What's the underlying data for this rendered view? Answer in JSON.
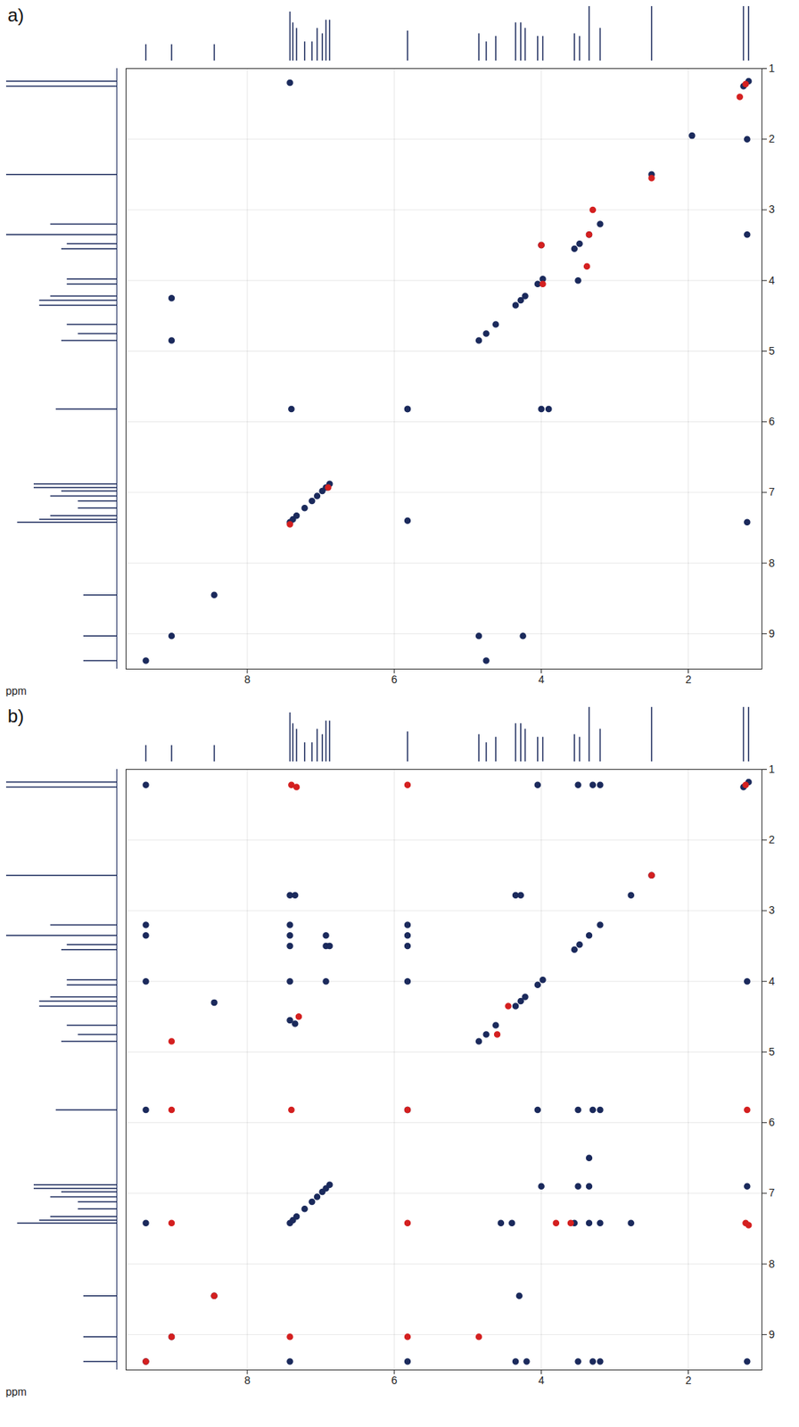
{
  "chart_data": [
    {
      "type": "scatter",
      "panel": "a)",
      "xlabel": "ppm",
      "xlim": [
        9.65,
        1.0
      ],
      "xticks": [
        8,
        6,
        4,
        2
      ],
      "ylim": [
        9.5,
        1.0
      ],
      "yticks": [
        1,
        2,
        3,
        4,
        5,
        6,
        7,
        8,
        9
      ],
      "grid": true,
      "marker": "circle",
      "projection": {
        "lim": [
          0,
          1
        ],
        "ppm": [
          9.38,
          9.03,
          8.45,
          7.42,
          7.38,
          7.33,
          7.22,
          7.12,
          7.05,
          6.98,
          6.93,
          6.88,
          5.82,
          4.85,
          4.75,
          4.62,
          4.35,
          4.28,
          4.22,
          4.05,
          3.98,
          3.55,
          3.48,
          3.35,
          3.2,
          2.5,
          1.25,
          1.18
        ],
        "intensity": [
          0.3,
          0.3,
          0.3,
          0.9,
          0.7,
          0.6,
          0.35,
          0.35,
          0.6,
          0.5,
          0.75,
          0.75,
          0.55,
          0.5,
          0.35,
          0.45,
          0.7,
          0.7,
          0.6,
          0.45,
          0.45,
          0.5,
          0.45,
          1.0,
          0.6,
          1.0,
          1.0,
          1.0
        ]
      },
      "series": [
        {
          "color": "#1b2a5c",
          "x": [
            9.38,
            9.03,
            8.45,
            7.42,
            7.38,
            7.33,
            7.22,
            7.12,
            7.05,
            6.98,
            6.93,
            6.88,
            5.82,
            4.85,
            4.75,
            4.62,
            4.35,
            4.28,
            4.22,
            4.05,
            3.98,
            3.55,
            3.48,
            3.35,
            3.2,
            2.5,
            1.95,
            1.25,
            1.18,
            1.2,
            4.0,
            3.5,
            5.82,
            7.4,
            5.82,
            4.0,
            3.9,
            9.03,
            4.85,
            4.75,
            9.03,
            4.25,
            1.2,
            1.2,
            7.42
          ],
          "y": [
            9.38,
            9.03,
            8.45,
            7.42,
            7.38,
            7.33,
            7.22,
            7.12,
            7.05,
            6.98,
            6.93,
            6.88,
            5.82,
            4.85,
            4.75,
            4.62,
            4.35,
            4.28,
            4.22,
            4.05,
            3.98,
            3.55,
            3.48,
            3.35,
            3.2,
            2.5,
            1.95,
            1.25,
            1.18,
            2.0,
            3.5,
            4.0,
            7.4,
            5.82,
            5.82,
            5.82,
            5.82,
            4.85,
            9.03,
            9.38,
            4.25,
            9.03,
            7.42,
            3.35,
            1.2
          ]
        },
        {
          "color": "#d42020",
          "x": [
            3.35,
            3.3,
            3.38,
            1.22,
            1.3,
            2.5,
            7.42,
            6.9,
            3.98,
            4.0
          ],
          "y": [
            3.35,
            3.0,
            3.8,
            1.22,
            1.4,
            2.55,
            7.45,
            6.93,
            4.05,
            3.5
          ]
        }
      ]
    },
    {
      "type": "scatter",
      "panel": "b)",
      "xlabel": "ppm",
      "xlim": [
        9.65,
        1.0
      ],
      "xticks": [
        8,
        6,
        4,
        2
      ],
      "ylim": [
        9.5,
        1.0
      ],
      "yticks": [
        1,
        2,
        3,
        4,
        5,
        6,
        7,
        8,
        9
      ],
      "grid": true,
      "marker": "circle",
      "projection": {
        "lim": [
          0,
          1
        ],
        "ppm": [
          9.38,
          9.03,
          8.45,
          7.42,
          7.38,
          7.33,
          7.22,
          7.12,
          7.05,
          6.98,
          6.93,
          6.88,
          5.82,
          4.85,
          4.75,
          4.62,
          4.35,
          4.28,
          4.22,
          4.05,
          3.98,
          3.55,
          3.48,
          3.35,
          3.2,
          2.5,
          1.25,
          1.18
        ],
        "intensity": [
          0.3,
          0.3,
          0.3,
          0.9,
          0.7,
          0.6,
          0.35,
          0.35,
          0.6,
          0.5,
          0.75,
          0.75,
          0.55,
          0.5,
          0.35,
          0.45,
          0.7,
          0.7,
          0.6,
          0.45,
          0.45,
          0.5,
          0.45,
          1.0,
          0.6,
          1.0,
          1.0,
          1.0
        ]
      },
      "series": [
        {
          "color": "#1b2a5c",
          "x": [
            9.38,
            9.03,
            8.45,
            7.42,
            7.38,
            7.33,
            7.22,
            7.12,
            7.05,
            6.98,
            6.93,
            6.88,
            5.82,
            4.85,
            4.75,
            4.62,
            4.35,
            4.28,
            4.22,
            4.05,
            3.98,
            3.55,
            3.48,
            3.35,
            3.2,
            2.78,
            2.5,
            1.25,
            1.18,
            4.05,
            3.5,
            3.3,
            3.2,
            9.38,
            7.42,
            7.35,
            4.35,
            4.28,
            9.38,
            7.42,
            5.82,
            9.38,
            7.42,
            6.93,
            5.82,
            7.42,
            6.93,
            6.88,
            5.82,
            9.38,
            7.42,
            6.93,
            5.82,
            1.2,
            8.45,
            7.42,
            7.35,
            9.38,
            4.05,
            3.5,
            3.3,
            3.2,
            3.35,
            4.0,
            3.5,
            3.35,
            1.2,
            9.38,
            4.55,
            4.4,
            3.55,
            3.35,
            3.2,
            2.78,
            4.3,
            7.42,
            5.82,
            4.35,
            4.2,
            3.5,
            3.3,
            3.2,
            1.2
          ],
          "y": [
            9.38,
            9.03,
            8.45,
            7.42,
            7.38,
            7.33,
            7.22,
            7.12,
            7.05,
            6.98,
            6.93,
            6.88,
            5.82,
            4.85,
            4.75,
            4.62,
            4.35,
            4.28,
            4.22,
            4.05,
            3.98,
            3.55,
            3.48,
            3.35,
            3.2,
            2.78,
            2.5,
            1.25,
            1.18,
            1.22,
            1.22,
            1.22,
            1.22,
            1.22,
            2.78,
            2.78,
            2.78,
            2.78,
            3.2,
            3.2,
            3.2,
            3.35,
            3.35,
            3.35,
            3.35,
            3.5,
            3.5,
            3.5,
            3.5,
            4.0,
            4.0,
            4.0,
            4.0,
            4.0,
            4.3,
            4.55,
            4.6,
            5.82,
            5.82,
            5.82,
            5.82,
            5.82,
            6.5,
            6.9,
            6.9,
            6.9,
            6.9,
            7.42,
            7.42,
            7.42,
            7.42,
            7.42,
            7.42,
            7.42,
            8.45,
            9.38,
            9.38,
            9.38,
            9.38,
            9.38,
            9.38,
            9.38,
            9.38
          ]
        },
        {
          "color": "#d42020",
          "x": [
            9.38,
            9.03,
            8.45,
            5.82,
            2.5,
            1.22,
            7.4,
            7.33,
            5.82,
            7.3,
            9.03,
            9.03,
            7.4,
            1.2,
            9.03,
            5.82,
            3.8,
            3.6,
            1.22,
            1.18,
            7.42,
            5.82,
            4.85,
            4.45,
            4.6
          ],
          "y": [
            9.38,
            9.03,
            8.45,
            5.82,
            2.5,
            1.22,
            1.22,
            1.25,
            1.22,
            4.5,
            4.85,
            5.82,
            5.82,
            5.82,
            7.42,
            7.42,
            7.42,
            7.42,
            7.42,
            7.45,
            9.03,
            9.03,
            9.03,
            4.35,
            4.75
          ]
        }
      ]
    }
  ]
}
